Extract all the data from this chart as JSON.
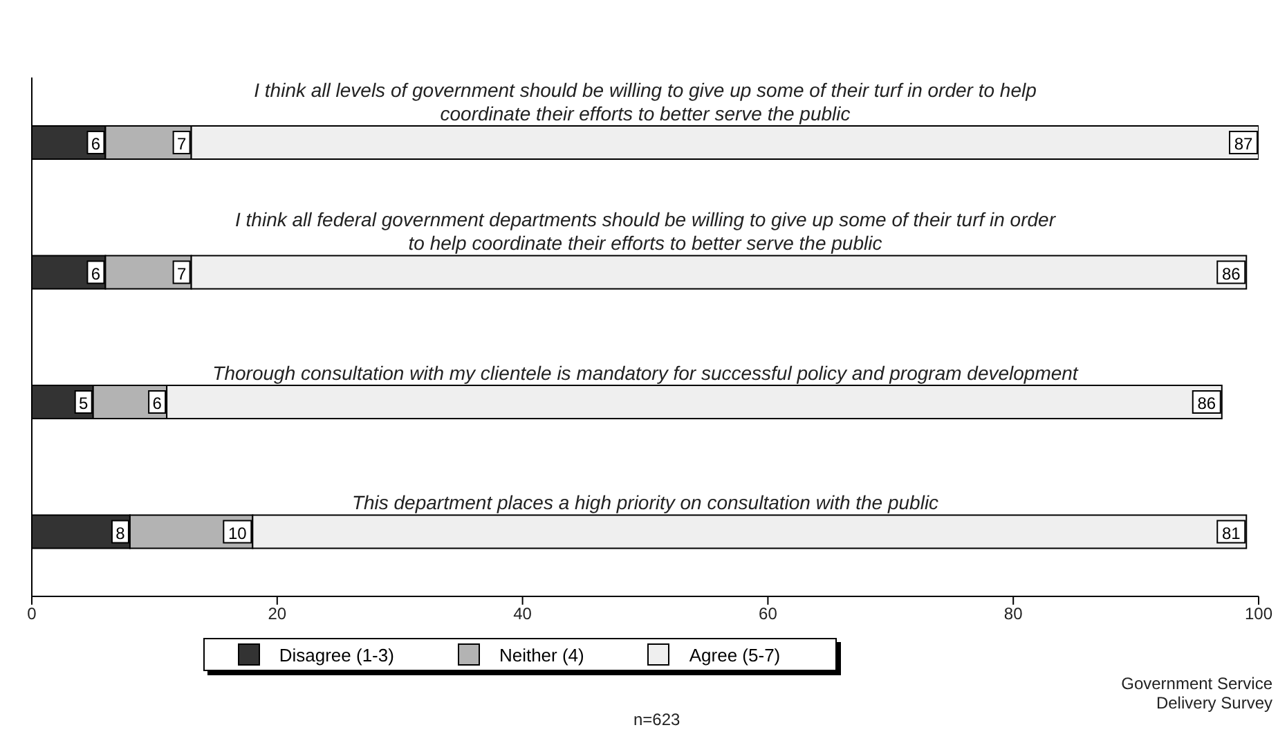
{
  "chart_data": {
    "type": "bar",
    "orientation": "horizontal",
    "stacked": true,
    "categories": [
      "I think all levels of government should be willing to give up some of their turf in order to help coordinate their efforts to better serve the public",
      "I think all federal government departments should be willing to give up some of their turf in order to help coordinate their efforts to better serve the public",
      "Thorough consultation with my clientele is mandatory for successful policy and program development",
      "This department places a high priority on consultation with the public"
    ],
    "series": [
      {
        "name": "Disagree (1-3)",
        "color": "#333333",
        "values": [
          6,
          6,
          5,
          8
        ]
      },
      {
        "name": "Neither (4)",
        "color": "#b3b3b3",
        "values": [
          7,
          7,
          6,
          10
        ]
      },
      {
        "name": "Agree (5-7)",
        "color": "#efefef",
        "values": [
          87,
          86,
          86,
          81
        ]
      }
    ],
    "xlim": [
      0,
      100
    ],
    "xticks": [
      0,
      20,
      40,
      60,
      80,
      100
    ],
    "data_labels": true,
    "legend": "bottom",
    "grid": false,
    "annotations": [
      "n=623",
      "Government Service Delivery Survey"
    ]
  }
}
